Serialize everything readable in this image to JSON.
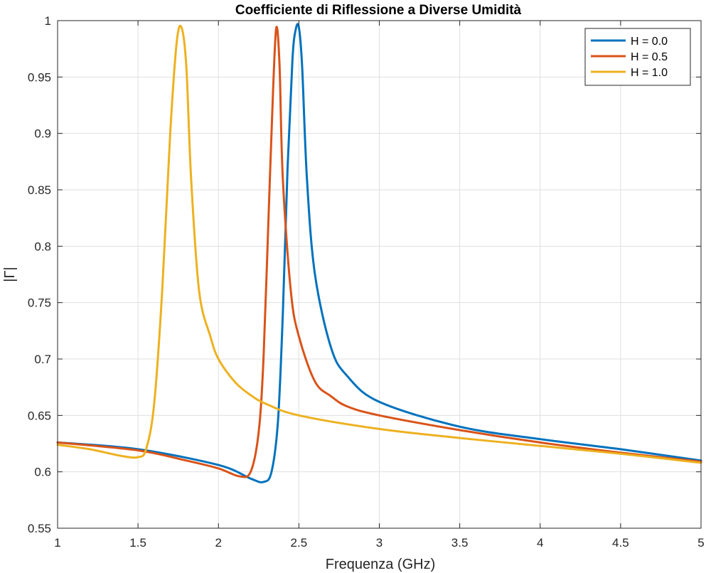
{
  "chart_data": {
    "type": "line",
    "title": "Coefficiente di Riflessione a Diverse Umidità",
    "xlabel": "Frequenza (GHz)",
    "ylabel": "|Γ|",
    "xlim": [
      1,
      5
    ],
    "ylim": [
      0.55,
      1
    ],
    "grid": true,
    "legend_position": "top-right",
    "xticks": [
      "1",
      "1.5",
      "2",
      "2.5",
      "3",
      "3.5",
      "4",
      "4.5",
      "5"
    ],
    "yticks": [
      "0.55",
      "0.6",
      "0.65",
      "0.7",
      "0.75",
      "0.8",
      "0.85",
      "0.9",
      "0.95",
      "1"
    ],
    "series": [
      {
        "name": "H = 0.0",
        "color": "#0072BD",
        "x": [
          1.0,
          1.5,
          2.0,
          2.2,
          2.28,
          2.33,
          2.37,
          2.4,
          2.43,
          2.46,
          2.48,
          2.5,
          2.52,
          2.55,
          2.6,
          2.7,
          2.8,
          3.0,
          3.5,
          4.0,
          4.5,
          5.0
        ],
        "y": [
          0.626,
          0.62,
          0.606,
          0.594,
          0.591,
          0.6,
          0.645,
          0.74,
          0.87,
          0.965,
          0.992,
          0.994,
          0.96,
          0.86,
          0.775,
          0.71,
          0.685,
          0.662,
          0.64,
          0.629,
          0.62,
          0.61
        ]
      },
      {
        "name": "H = 0.5",
        "color": "#D95319",
        "x": [
          1.0,
          1.5,
          1.8,
          2.0,
          2.13,
          2.2,
          2.25,
          2.28,
          2.31,
          2.34,
          2.36,
          2.38,
          2.4,
          2.45,
          2.5,
          2.6,
          2.7,
          2.8,
          3.0,
          3.5,
          4.0,
          4.5,
          5.0
        ],
        "y": [
          0.626,
          0.619,
          0.61,
          0.603,
          0.596,
          0.6,
          0.635,
          0.7,
          0.82,
          0.94,
          0.994,
          0.96,
          0.86,
          0.76,
          0.72,
          0.68,
          0.667,
          0.658,
          0.65,
          0.637,
          0.626,
          0.617,
          0.609
        ]
      },
      {
        "name": "H = 1.0",
        "color": "#EDB120",
        "x": [
          1.0,
          1.2,
          1.4,
          1.5,
          1.55,
          1.6,
          1.65,
          1.7,
          1.74,
          1.77,
          1.8,
          1.83,
          1.88,
          1.95,
          2.0,
          2.1,
          2.2,
          2.3,
          2.5,
          3.0,
          3.5,
          4.0,
          4.5,
          5.0
        ],
        "y": [
          0.624,
          0.62,
          0.614,
          0.613,
          0.62,
          0.66,
          0.76,
          0.9,
          0.98,
          0.994,
          0.96,
          0.86,
          0.76,
          0.72,
          0.7,
          0.68,
          0.668,
          0.66,
          0.65,
          0.638,
          0.63,
          0.623,
          0.616,
          0.608
        ]
      }
    ]
  }
}
